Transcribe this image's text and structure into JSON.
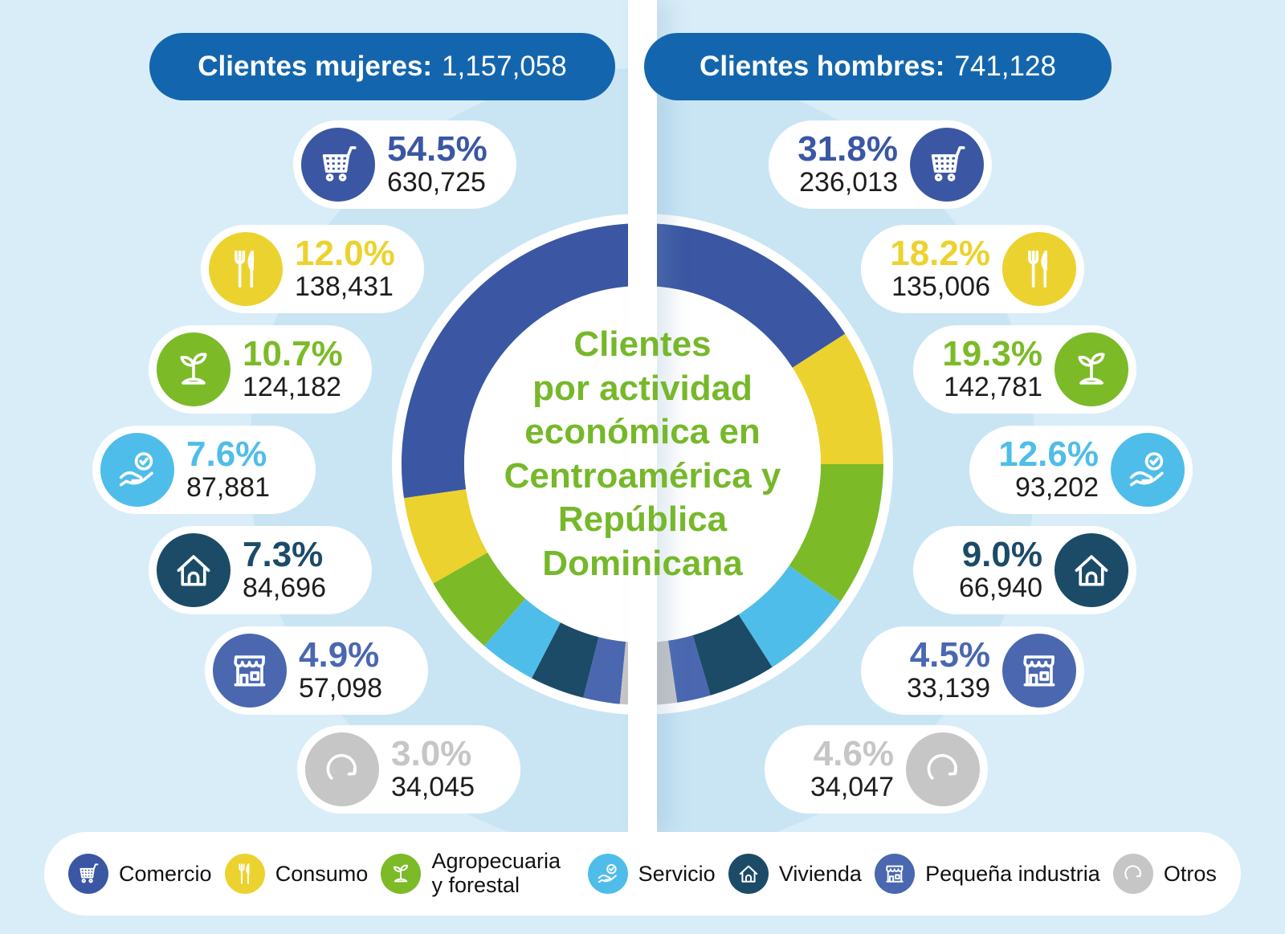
{
  "header": {
    "women_label": "Clientes mujeres:",
    "women_value": "1,157,058",
    "men_label": "Clientes hombres:",
    "men_value": "741,128"
  },
  "center_title_lines": [
    "Clientes",
    "por actividad",
    "económica en",
    "Centroamérica y",
    "República",
    "Dominicana"
  ],
  "categories": [
    {
      "id": "comercio",
      "label": "Comercio",
      "icon": "shopping-cart-icon",
      "color": "#3b57a3"
    },
    {
      "id": "consumo",
      "label": "Consumo",
      "icon": "cutlery-icon",
      "color": "#ecd22e"
    },
    {
      "id": "agropecuaria",
      "label": "Agropecuaria y forestal",
      "icon": "plant-icon",
      "color": "#7cba28"
    },
    {
      "id": "servicio",
      "label": "Servicio",
      "icon": "hand-check-icon",
      "color": "#4fbde9"
    },
    {
      "id": "vivienda",
      "label": "Vivienda",
      "icon": "house-icon",
      "color": "#1b4b67"
    },
    {
      "id": "pequena_industria",
      "label": "Pequeña industria",
      "icon": "storefront-icon",
      "color": "#4a67b0"
    },
    {
      "id": "otros",
      "label": "Otros",
      "icon": "refresh-arrow-icon",
      "color": "#c6c6c6"
    }
  ],
  "stats": {
    "women": [
      {
        "category": "comercio",
        "pct": "54.5%",
        "count": "630,725"
      },
      {
        "category": "consumo",
        "pct": "12.0%",
        "count": "138,431"
      },
      {
        "category": "agropecuaria",
        "pct": "10.7%",
        "count": "124,182"
      },
      {
        "category": "servicio",
        "pct": "7.6%",
        "count": "87,881"
      },
      {
        "category": "vivienda",
        "pct": "7.3%",
        "count": "84,696"
      },
      {
        "category": "pequena_industria",
        "pct": "4.9%",
        "count": "57,098"
      },
      {
        "category": "otros",
        "pct": "3.0%",
        "count": "34,045"
      }
    ],
    "men": [
      {
        "category": "comercio",
        "pct": "31.8%",
        "count": "236,013"
      },
      {
        "category": "consumo",
        "pct": "18.2%",
        "count": "135,006"
      },
      {
        "category": "agropecuaria",
        "pct": "19.3%",
        "count": "142,781"
      },
      {
        "category": "servicio",
        "pct": "12.6%",
        "count": "93,202"
      },
      {
        "category": "vivienda",
        "pct": "9.0%",
        "count": "66,940"
      },
      {
        "category": "pequena_industria",
        "pct": "4.5%",
        "count": "33,139"
      },
      {
        "category": "otros",
        "pct": "4.6%",
        "count": "34,047"
      }
    ]
  },
  "chart_data": {
    "type": "donut",
    "title": "Clientes por actividad económica en Centroamérica y República Dominicana",
    "categories": [
      "Comercio",
      "Consumo",
      "Agropecuaria y forestal",
      "Servicio",
      "Vivienda",
      "Pequeña industria",
      "Otros"
    ],
    "colors": [
      "#3b57a3",
      "#ecd22e",
      "#7cba28",
      "#4fbde9",
      "#1b4b67",
      "#4a67b0",
      "#c6c6c6"
    ],
    "series": [
      {
        "name": "Clientes mujeres",
        "half": "left",
        "total": 1157058,
        "percent": [
          54.5,
          12.0,
          10.7,
          7.6,
          7.3,
          4.9,
          3.0
        ],
        "values": [
          630725,
          138431,
          124182,
          87881,
          84696,
          57098,
          34045
        ]
      },
      {
        "name": "Clientes hombres",
        "half": "right",
        "total": 741128,
        "percent": [
          31.8,
          18.2,
          19.3,
          12.6,
          9.0,
          4.5,
          4.6
        ],
        "values": [
          236013,
          135006,
          142781,
          93202,
          66940,
          33139,
          34047
        ]
      }
    ],
    "layout": {
      "legend_position": "bottom",
      "center_label": true,
      "split": "vertical-half"
    }
  }
}
